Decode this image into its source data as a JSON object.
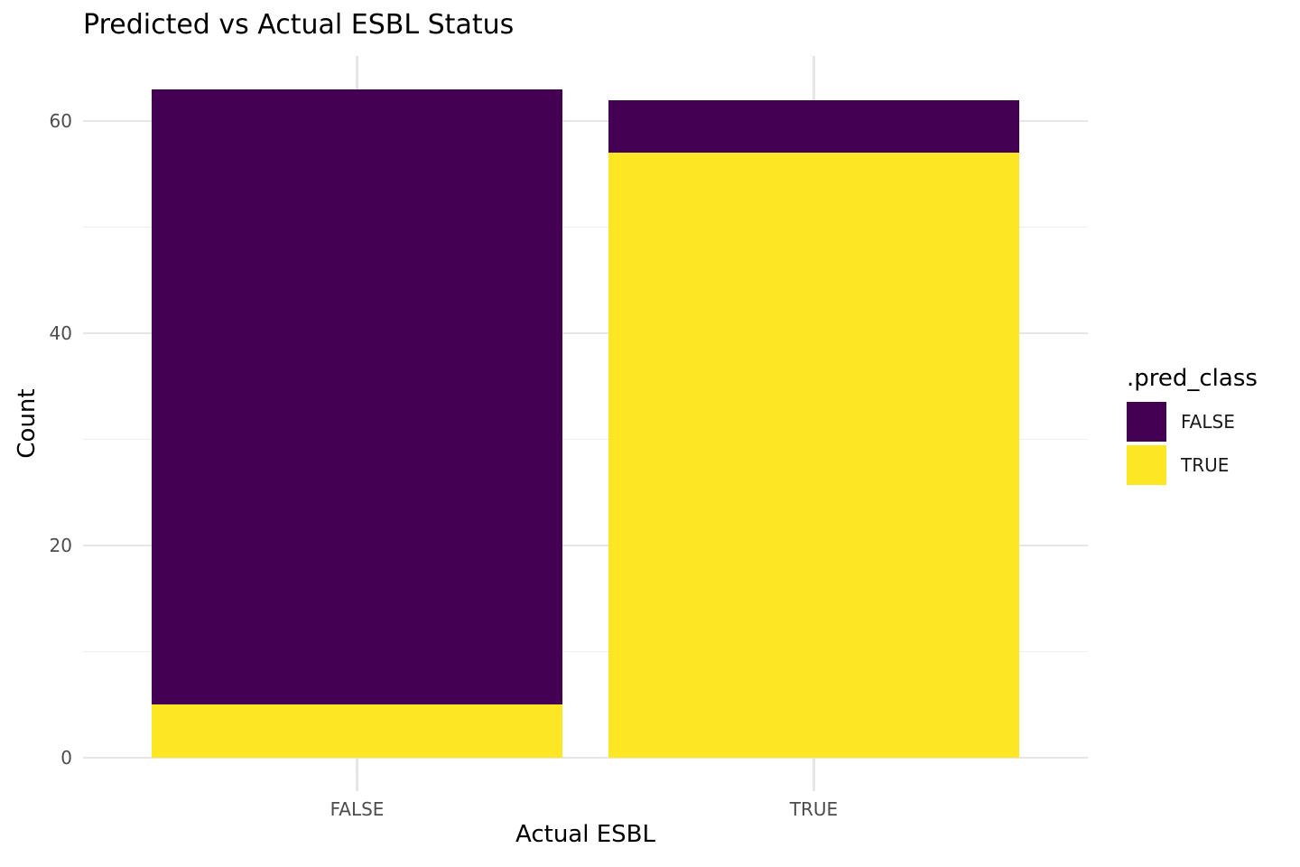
{
  "chart_data": {
    "type": "bar",
    "stacked": true,
    "title": "Predicted vs Actual ESBL Status",
    "xlabel": "Actual ESBL",
    "ylabel": "Count",
    "categories": [
      "FALSE",
      "TRUE"
    ],
    "series": [
      {
        "name": "FALSE",
        "color": "#440154",
        "values": [
          58,
          5
        ]
      },
      {
        "name": "TRUE",
        "color": "#FDE725",
        "values": [
          5,
          57
        ]
      }
    ],
    "stack_totals": [
      63,
      62
    ],
    "ylim": [
      0,
      63
    ],
    "y_ticks": [
      0,
      20,
      40,
      60
    ],
    "y_minor_ticks": [
      10,
      30,
      50
    ],
    "grid": "major+minor horizontal, major vertical at category centers",
    "legend": {
      "title": ".pred_class",
      "position": "right",
      "entries": [
        "FALSE",
        "TRUE"
      ]
    }
  },
  "style": {
    "axis_text_color": "#4D4D4D",
    "title_text_color": "#000000",
    "legend_text_color": "#1A1A1A",
    "grid_major_color": "#E6E6E6",
    "grid_minor_color": "#EFEFEF",
    "panel_background": "#FFFFFF"
  }
}
